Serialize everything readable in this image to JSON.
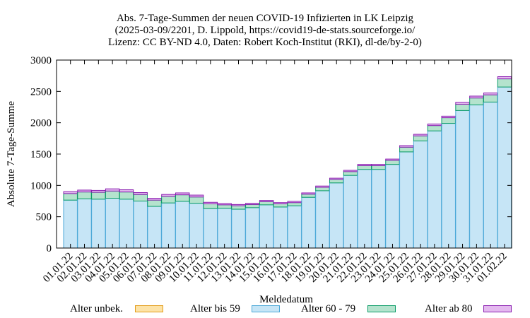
{
  "chart_data": {
    "type": "bar",
    "title_lines": [
      "Abs. 7-Tage-Summen der neuen COVID-19 Infizierten in LK Leipzig",
      "(2025-03-09/2201, D. Lippold, https://covid19-de-stats.sourceforge.io/",
      "Lizenz: CC BY-ND 4.0, Daten: Robert Koch-Institut (RKI), dl-de/by-2-0)"
    ],
    "xlabel": "Meldedatum",
    "ylabel": "Absolute 7-Tage-Summe",
    "ylim": [
      0,
      3000
    ],
    "yticks": [
      0,
      500,
      1000,
      1500,
      2000,
      2500,
      3000
    ],
    "stacked": true,
    "grid": false,
    "legend_position": "bottom",
    "categories": [
      "01.01.22",
      "02.01.22",
      "03.01.22",
      "04.01.22",
      "05.01.22",
      "06.01.22",
      "07.01.22",
      "08.01.22",
      "09.01.22",
      "10.01.22",
      "11.01.22",
      "12.01.22",
      "13.01.22",
      "14.01.22",
      "15.01.22",
      "16.01.22",
      "17.01.22",
      "18.01.22",
      "19.01.22",
      "20.01.22",
      "21.01.22",
      "22.01.22",
      "23.01.22",
      "24.01.22",
      "25.01.22",
      "26.01.22",
      "27.01.22",
      "28.01.22",
      "29.01.22",
      "30.01.22",
      "31.01.22",
      "01.02.22"
    ],
    "series": [
      {
        "name": "Alter unbek.",
        "fill": "#fde3a7",
        "stroke": "#e39c1a",
        "values": [
          0,
          0,
          0,
          0,
          0,
          0,
          0,
          0,
          0,
          0,
          0,
          0,
          0,
          0,
          0,
          0,
          0,
          0,
          0,
          0,
          0,
          0,
          0,
          0,
          0,
          0,
          0,
          0,
          0,
          0,
          0,
          0
        ]
      },
      {
        "name": "Alter bis 59",
        "fill": "#c6e5f6",
        "stroke": "#4da9d8",
        "values": [
          765,
          785,
          780,
          795,
          780,
          750,
          665,
          720,
          745,
          715,
          630,
          635,
          620,
          645,
          690,
          655,
          675,
          810,
          915,
          1040,
          1160,
          1255,
          1255,
          1335,
          1535,
          1710,
          1870,
          1990,
          2195,
          2285,
          2330,
          2570
        ]
      },
      {
        "name": "Alter 60 - 79",
        "fill": "#b4e3cd",
        "stroke": "#0c9d68",
        "values": [
          105,
          110,
          110,
          115,
          115,
          105,
          100,
          105,
          105,
          100,
          75,
          55,
          55,
          50,
          50,
          50,
          50,
          50,
          55,
          55,
          60,
          60,
          60,
          65,
          75,
          80,
          85,
          90,
          100,
          110,
          115,
          130
        ]
      },
      {
        "name": "Alter ab 80",
        "fill": "#e4b9ef",
        "stroke": "#8a1fb0",
        "values": [
          30,
          30,
          30,
          35,
          35,
          30,
          30,
          30,
          30,
          30,
          25,
          20,
          20,
          20,
          20,
          20,
          20,
          20,
          20,
          20,
          20,
          20,
          20,
          20,
          25,
          25,
          25,
          25,
          30,
          30,
          30,
          35
        ]
      }
    ]
  }
}
